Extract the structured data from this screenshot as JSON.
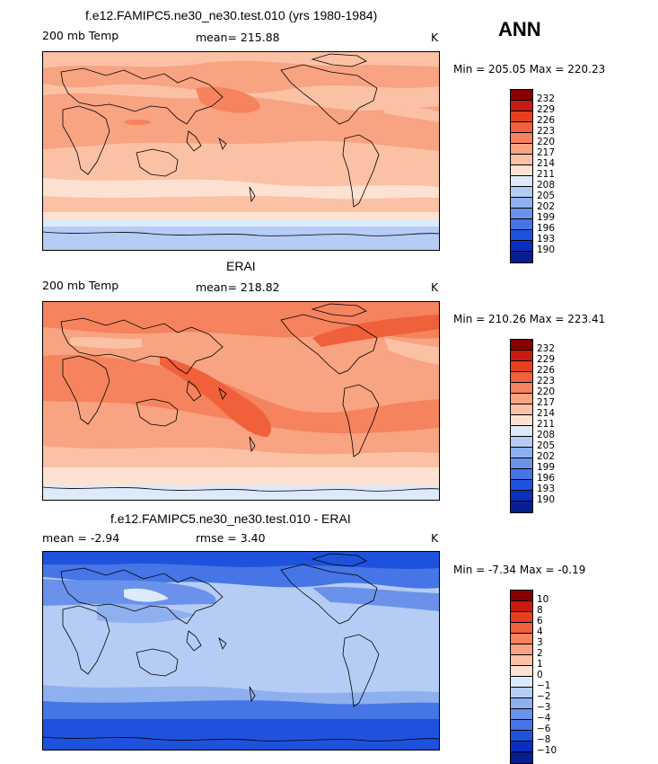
{
  "season": "ANN",
  "panels": [
    {
      "title": "f.e12.FAMIPC5.ne30_ne30.test.010 (yrs 1980-1984)",
      "variable": "200 mb Temp",
      "stat": "mean= 215.88",
      "units": "K",
      "minmax": "Min = 205.05 Max = 220.23",
      "palette": "abs"
    },
    {
      "title": "ERAI",
      "variable": "200 mb Temp",
      "stat": "mean= 218.82",
      "units": "K",
      "minmax": "Min = 210.26 Max = 223.41",
      "palette": "abs"
    },
    {
      "title": "f.e12.FAMIPC5.ne30_ne30.test.010 - ERAI",
      "variable": "mean =   -2.94",
      "stat": "rmse =    3.40",
      "units": "K",
      "minmax": "Min =  -7.34 Max =  -0.19",
      "palette": "diff"
    }
  ],
  "colorbars": {
    "abs_labels": [
      "232",
      "229",
      "226",
      "223",
      "220",
      "217",
      "214",
      "211",
      "208",
      "205",
      "202",
      "199",
      "196",
      "193",
      "190"
    ],
    "diff_labels": [
      "10",
      "8",
      "6",
      "4",
      "3",
      "2",
      "1",
      "0",
      "−1",
      "−2",
      "−3",
      "−4",
      "−6",
      "−8",
      "−10"
    ],
    "colors": [
      "#870000",
      "#c81b0f",
      "#e8401f",
      "#f0603a",
      "#f5835d",
      "#f8a382",
      "#fbc1a5",
      "#fde2d2",
      "#ddeafb",
      "#b5cdf4",
      "#8eb0ef",
      "#6b92ea",
      "#4675e6",
      "#1f52dc",
      "#0a2fbf",
      "#081d8e"
    ]
  }
}
